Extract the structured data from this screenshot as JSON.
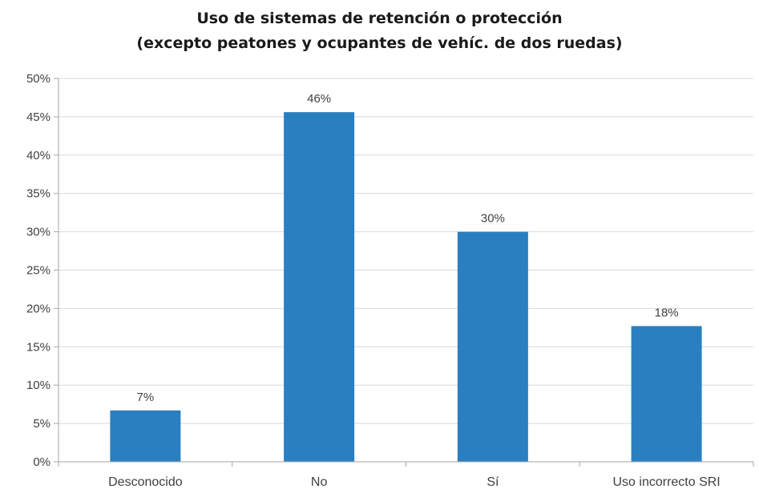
{
  "chart_data": {
    "type": "bar",
    "title_lines": [
      "Uso de sistemas de retención o protección",
      "(excepto peatones y ocupantes de vehíc. de dos ruedas)"
    ],
    "categories": [
      "Desconocido",
      "No",
      "Sí",
      "Uso incorrecto SRI"
    ],
    "values": [
      7,
      46,
      30,
      18
    ],
    "bar_heights": [
      6.7,
      45.6,
      30.0,
      17.7
    ],
    "data_labels": [
      "7%",
      "46%",
      "30%",
      "18%"
    ],
    "ytick_labels": [
      "0%",
      "5%",
      "10%",
      "15%",
      "20%",
      "25%",
      "30%",
      "35%",
      "40%",
      "45%",
      "50%"
    ],
    "ylim": [
      0,
      50
    ],
    "y_step": 5,
    "xlabel": "",
    "ylabel": "",
    "grid": true,
    "legend": false,
    "colors": {
      "bar": "#2a7fc0",
      "grid": "#d9d9d9",
      "axis": "#a6a6a6"
    }
  }
}
